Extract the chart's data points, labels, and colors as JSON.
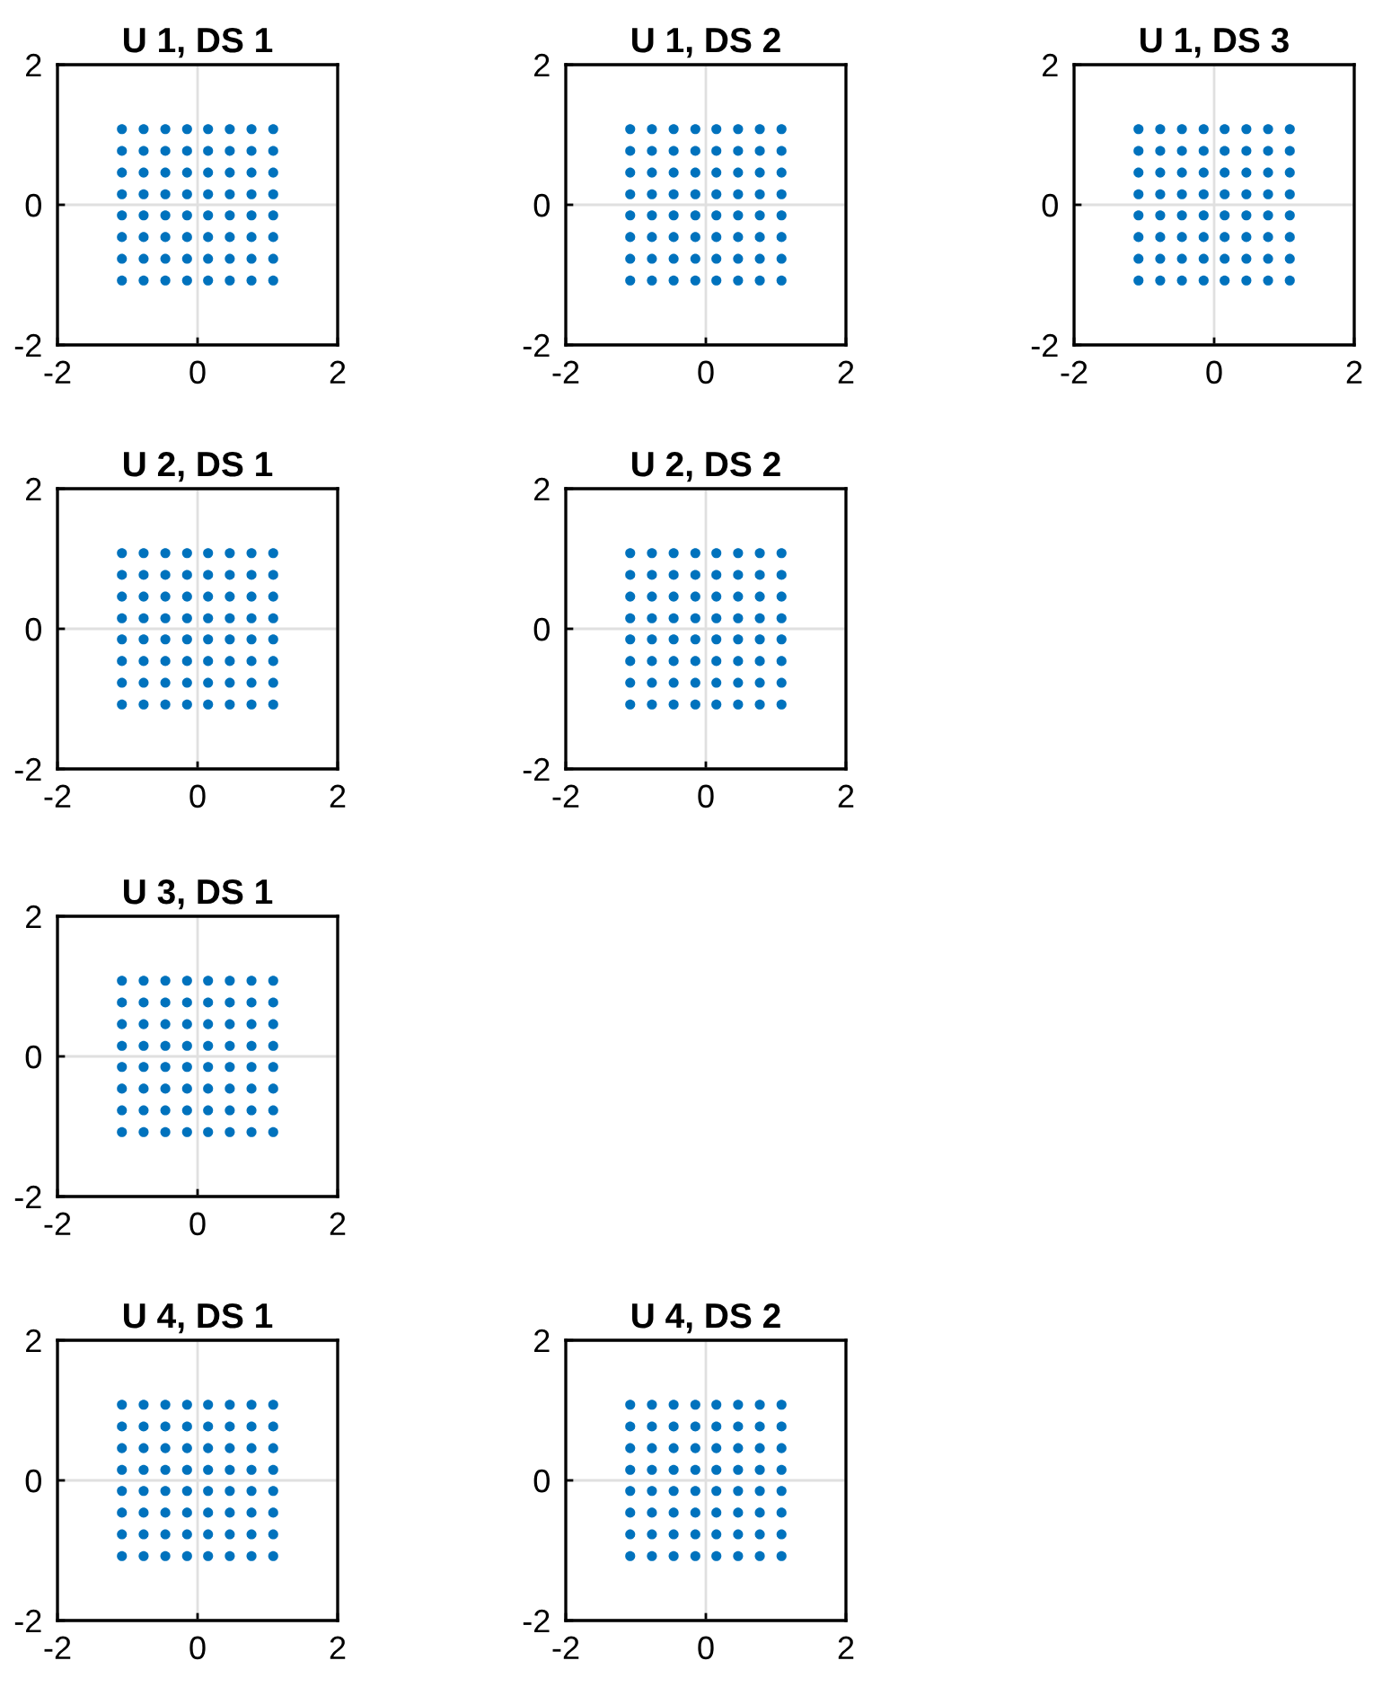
{
  "chart_data": [
    {
      "type": "scatter",
      "title": "U 1, DS 1",
      "xlim": [
        -2,
        2
      ],
      "ylim": [
        -2,
        2
      ],
      "xticks": [
        -2,
        0,
        2
      ],
      "yticks": [
        -2,
        0,
        2
      ],
      "grid": true,
      "marker": "circle",
      "series": [
        {
          "color": "#0072bd",
          "x": [
            -1.08,
            -0.77,
            -0.46,
            -0.15,
            0.15,
            0.46,
            0.77,
            1.08,
            -1.08,
            -0.77,
            -0.46,
            -0.15,
            0.15,
            0.46,
            0.77,
            1.08,
            -1.08,
            -0.77,
            -0.46,
            -0.15,
            0.15,
            0.46,
            0.77,
            1.08,
            -1.08,
            -0.77,
            -0.46,
            -0.15,
            0.15,
            0.46,
            0.77,
            1.08,
            -1.08,
            -0.77,
            -0.46,
            -0.15,
            0.15,
            0.46,
            0.77,
            1.08,
            -1.08,
            -0.77,
            -0.46,
            -0.15,
            0.15,
            0.46,
            0.77,
            1.08,
            -1.08,
            -0.77,
            -0.46,
            -0.15,
            0.15,
            0.46,
            0.77,
            1.08,
            -1.08,
            -0.77,
            -0.46,
            -0.15,
            0.15,
            0.46,
            0.77,
            1.08
          ],
          "values": [
            -1.08,
            -1.08,
            -1.08,
            -1.08,
            -1.08,
            -1.08,
            -1.08,
            -1.08,
            -0.77,
            -0.77,
            -0.77,
            -0.77,
            -0.77,
            -0.77,
            -0.77,
            -0.77,
            -0.46,
            -0.46,
            -0.46,
            -0.46,
            -0.46,
            -0.46,
            -0.46,
            -0.46,
            -0.15,
            -0.15,
            -0.15,
            -0.15,
            -0.15,
            -0.15,
            -0.15,
            -0.15,
            0.15,
            0.15,
            0.15,
            0.15,
            0.15,
            0.15,
            0.15,
            0.15,
            0.46,
            0.46,
            0.46,
            0.46,
            0.46,
            0.46,
            0.46,
            0.46,
            0.77,
            0.77,
            0.77,
            0.77,
            0.77,
            0.77,
            0.77,
            0.77,
            1.08,
            1.08,
            1.08,
            1.08,
            1.08,
            1.08,
            1.08,
            1.08
          ]
        }
      ]
    },
    {
      "type": "scatter",
      "title": "U 1, DS 2",
      "xlim": [
        -2,
        2
      ],
      "ylim": [
        -2,
        2
      ],
      "xticks": [
        -2,
        0,
        2
      ],
      "yticks": [
        -2,
        0,
        2
      ],
      "grid": true,
      "marker": "circle",
      "series": [
        {
          "color": "#0072bd",
          "x": [
            -1.08,
            -0.77,
            -0.46,
            -0.15,
            0.15,
            0.46,
            0.77,
            1.08,
            -1.08,
            -0.77,
            -0.46,
            -0.15,
            0.15,
            0.46,
            0.77,
            1.08,
            -1.08,
            -0.77,
            -0.46,
            -0.15,
            0.15,
            0.46,
            0.77,
            1.08,
            -1.08,
            -0.77,
            -0.46,
            -0.15,
            0.15,
            0.46,
            0.77,
            1.08,
            -1.08,
            -0.77,
            -0.46,
            -0.15,
            0.15,
            0.46,
            0.77,
            1.08,
            -1.08,
            -0.77,
            -0.46,
            -0.15,
            0.15,
            0.46,
            0.77,
            1.08,
            -1.08,
            -0.77,
            -0.46,
            -0.15,
            0.15,
            0.46,
            0.77,
            1.08,
            -1.08,
            -0.77,
            -0.46,
            -0.15,
            0.15,
            0.46,
            0.77,
            1.08
          ],
          "values": [
            -1.08,
            -1.08,
            -1.08,
            -1.08,
            -1.08,
            -1.08,
            -1.08,
            -1.08,
            -0.77,
            -0.77,
            -0.77,
            -0.77,
            -0.77,
            -0.77,
            -0.77,
            -0.77,
            -0.46,
            -0.46,
            -0.46,
            -0.46,
            -0.46,
            -0.46,
            -0.46,
            -0.46,
            -0.15,
            -0.15,
            -0.15,
            -0.15,
            -0.15,
            -0.15,
            -0.15,
            -0.15,
            0.15,
            0.15,
            0.15,
            0.15,
            0.15,
            0.15,
            0.15,
            0.15,
            0.46,
            0.46,
            0.46,
            0.46,
            0.46,
            0.46,
            0.46,
            0.46,
            0.77,
            0.77,
            0.77,
            0.77,
            0.77,
            0.77,
            0.77,
            0.77,
            1.08,
            1.08,
            1.08,
            1.08,
            1.08,
            1.08,
            1.08,
            1.08
          ]
        }
      ]
    },
    {
      "type": "scatter",
      "title": "U 1, DS 3",
      "xlim": [
        -2,
        2
      ],
      "ylim": [
        -2,
        2
      ],
      "xticks": [
        -2,
        0,
        2
      ],
      "yticks": [
        -2,
        0,
        2
      ],
      "grid": true,
      "marker": "circle",
      "series": [
        {
          "color": "#0072bd",
          "x": [
            -1.08,
            -0.77,
            -0.46,
            -0.15,
            0.15,
            0.46,
            0.77,
            1.08,
            -1.08,
            -0.77,
            -0.46,
            -0.15,
            0.15,
            0.46,
            0.77,
            1.08,
            -1.08,
            -0.77,
            -0.46,
            -0.15,
            0.15,
            0.46,
            0.77,
            1.08,
            -1.08,
            -0.77,
            -0.46,
            -0.15,
            0.15,
            0.46,
            0.77,
            1.08,
            -1.08,
            -0.77,
            -0.46,
            -0.15,
            0.15,
            0.46,
            0.77,
            1.08,
            -1.08,
            -0.77,
            -0.46,
            -0.15,
            0.15,
            0.46,
            0.77,
            1.08,
            -1.08,
            -0.77,
            -0.46,
            -0.15,
            0.15,
            0.46,
            0.77,
            1.08,
            -1.08,
            -0.77,
            -0.46,
            -0.15,
            0.15,
            0.46,
            0.77,
            1.08
          ],
          "values": [
            -1.08,
            -1.08,
            -1.08,
            -1.08,
            -1.08,
            -1.08,
            -1.08,
            -1.08,
            -0.77,
            -0.77,
            -0.77,
            -0.77,
            -0.77,
            -0.77,
            -0.77,
            -0.77,
            -0.46,
            -0.46,
            -0.46,
            -0.46,
            -0.46,
            -0.46,
            -0.46,
            -0.46,
            -0.15,
            -0.15,
            -0.15,
            -0.15,
            -0.15,
            -0.15,
            -0.15,
            -0.15,
            0.15,
            0.15,
            0.15,
            0.15,
            0.15,
            0.15,
            0.15,
            0.15,
            0.46,
            0.46,
            0.46,
            0.46,
            0.46,
            0.46,
            0.46,
            0.46,
            0.77,
            0.77,
            0.77,
            0.77,
            0.77,
            0.77,
            0.77,
            0.77,
            1.08,
            1.08,
            1.08,
            1.08,
            1.08,
            1.08,
            1.08,
            1.08
          ]
        }
      ]
    },
    {
      "type": "scatter",
      "title": "U 2, DS 1",
      "xlim": [
        -2,
        2
      ],
      "ylim": [
        -2,
        2
      ],
      "xticks": [
        -2,
        0,
        2
      ],
      "yticks": [
        -2,
        0,
        2
      ],
      "grid": true,
      "marker": "circle",
      "series": [
        {
          "color": "#0072bd",
          "x": [
            -1.08,
            -0.77,
            -0.46,
            -0.15,
            0.15,
            0.46,
            0.77,
            1.08,
            -1.08,
            -0.77,
            -0.46,
            -0.15,
            0.15,
            0.46,
            0.77,
            1.08,
            -1.08,
            -0.77,
            -0.46,
            -0.15,
            0.15,
            0.46,
            0.77,
            1.08,
            -1.08,
            -0.77,
            -0.46,
            -0.15,
            0.15,
            0.46,
            0.77,
            1.08,
            -1.08,
            -0.77,
            -0.46,
            -0.15,
            0.15,
            0.46,
            0.77,
            1.08,
            -1.08,
            -0.77,
            -0.46,
            -0.15,
            0.15,
            0.46,
            0.77,
            1.08,
            -1.08,
            -0.77,
            -0.46,
            -0.15,
            0.15,
            0.46,
            0.77,
            1.08,
            -1.08,
            -0.77,
            -0.46,
            -0.15,
            0.15,
            0.46,
            0.77,
            1.08
          ],
          "values": [
            -1.08,
            -1.08,
            -1.08,
            -1.08,
            -1.08,
            -1.08,
            -1.08,
            -1.08,
            -0.77,
            -0.77,
            -0.77,
            -0.77,
            -0.77,
            -0.77,
            -0.77,
            -0.77,
            -0.46,
            -0.46,
            -0.46,
            -0.46,
            -0.46,
            -0.46,
            -0.46,
            -0.46,
            -0.15,
            -0.15,
            -0.15,
            -0.15,
            -0.15,
            -0.15,
            -0.15,
            -0.15,
            0.15,
            0.15,
            0.15,
            0.15,
            0.15,
            0.15,
            0.15,
            0.15,
            0.46,
            0.46,
            0.46,
            0.46,
            0.46,
            0.46,
            0.46,
            0.46,
            0.77,
            0.77,
            0.77,
            0.77,
            0.77,
            0.77,
            0.77,
            0.77,
            1.08,
            1.08,
            1.08,
            1.08,
            1.08,
            1.08,
            1.08,
            1.08
          ]
        }
      ]
    },
    {
      "type": "scatter",
      "title": "U 2, DS 2",
      "xlim": [
        -2,
        2
      ],
      "ylim": [
        -2,
        2
      ],
      "xticks": [
        -2,
        0,
        2
      ],
      "yticks": [
        -2,
        0,
        2
      ],
      "grid": true,
      "marker": "circle",
      "series": [
        {
          "color": "#0072bd",
          "x": [
            -1.08,
            -0.77,
            -0.46,
            -0.15,
            0.15,
            0.46,
            0.77,
            1.08,
            -1.08,
            -0.77,
            -0.46,
            -0.15,
            0.15,
            0.46,
            0.77,
            1.08,
            -1.08,
            -0.77,
            -0.46,
            -0.15,
            0.15,
            0.46,
            0.77,
            1.08,
            -1.08,
            -0.77,
            -0.46,
            -0.15,
            0.15,
            0.46,
            0.77,
            1.08,
            -1.08,
            -0.77,
            -0.46,
            -0.15,
            0.15,
            0.46,
            0.77,
            1.08,
            -1.08,
            -0.77,
            -0.46,
            -0.15,
            0.15,
            0.46,
            0.77,
            1.08,
            -1.08,
            -0.77,
            -0.46,
            -0.15,
            0.15,
            0.46,
            0.77,
            1.08,
            -1.08,
            -0.77,
            -0.46,
            -0.15,
            0.15,
            0.46,
            0.77,
            1.08
          ],
          "values": [
            -1.08,
            -1.08,
            -1.08,
            -1.08,
            -1.08,
            -1.08,
            -1.08,
            -1.08,
            -0.77,
            -0.77,
            -0.77,
            -0.77,
            -0.77,
            -0.77,
            -0.77,
            -0.77,
            -0.46,
            -0.46,
            -0.46,
            -0.46,
            -0.46,
            -0.46,
            -0.46,
            -0.46,
            -0.15,
            -0.15,
            -0.15,
            -0.15,
            -0.15,
            -0.15,
            -0.15,
            -0.15,
            0.15,
            0.15,
            0.15,
            0.15,
            0.15,
            0.15,
            0.15,
            0.15,
            0.46,
            0.46,
            0.46,
            0.46,
            0.46,
            0.46,
            0.46,
            0.46,
            0.77,
            0.77,
            0.77,
            0.77,
            0.77,
            0.77,
            0.77,
            0.77,
            1.08,
            1.08,
            1.08,
            1.08,
            1.08,
            1.08,
            1.08,
            1.08
          ]
        }
      ]
    },
    {
      "type": "scatter",
      "title": "U 3, DS 1",
      "xlim": [
        -2,
        2
      ],
      "ylim": [
        -2,
        2
      ],
      "xticks": [
        -2,
        0,
        2
      ],
      "yticks": [
        -2,
        0,
        2
      ],
      "grid": true,
      "marker": "circle",
      "series": [
        {
          "color": "#0072bd",
          "x": [
            -1.08,
            -0.77,
            -0.46,
            -0.15,
            0.15,
            0.46,
            0.77,
            1.08,
            -1.08,
            -0.77,
            -0.46,
            -0.15,
            0.15,
            0.46,
            0.77,
            1.08,
            -1.08,
            -0.77,
            -0.46,
            -0.15,
            0.15,
            0.46,
            0.77,
            1.08,
            -1.08,
            -0.77,
            -0.46,
            -0.15,
            0.15,
            0.46,
            0.77,
            1.08,
            -1.08,
            -0.77,
            -0.46,
            -0.15,
            0.15,
            0.46,
            0.77,
            1.08,
            -1.08,
            -0.77,
            -0.46,
            -0.15,
            0.15,
            0.46,
            0.77,
            1.08,
            -1.08,
            -0.77,
            -0.46,
            -0.15,
            0.15,
            0.46,
            0.77,
            1.08,
            -1.08,
            -0.77,
            -0.46,
            -0.15,
            0.15,
            0.46,
            0.77,
            1.08
          ],
          "values": [
            -1.08,
            -1.08,
            -1.08,
            -1.08,
            -1.08,
            -1.08,
            -1.08,
            -1.08,
            -0.77,
            -0.77,
            -0.77,
            -0.77,
            -0.77,
            -0.77,
            -0.77,
            -0.77,
            -0.46,
            -0.46,
            -0.46,
            -0.46,
            -0.46,
            -0.46,
            -0.46,
            -0.46,
            -0.15,
            -0.15,
            -0.15,
            -0.15,
            -0.15,
            -0.15,
            -0.15,
            -0.15,
            0.15,
            0.15,
            0.15,
            0.15,
            0.15,
            0.15,
            0.15,
            0.15,
            0.46,
            0.46,
            0.46,
            0.46,
            0.46,
            0.46,
            0.46,
            0.46,
            0.77,
            0.77,
            0.77,
            0.77,
            0.77,
            0.77,
            0.77,
            0.77,
            1.08,
            1.08,
            1.08,
            1.08,
            1.08,
            1.08,
            1.08,
            1.08
          ]
        }
      ]
    },
    {
      "type": "scatter",
      "title": "U 4, DS 1",
      "xlim": [
        -2,
        2
      ],
      "ylim": [
        -2,
        2
      ],
      "xticks": [
        -2,
        0,
        2
      ],
      "yticks": [
        -2,
        0,
        2
      ],
      "grid": true,
      "marker": "circle",
      "series": [
        {
          "color": "#0072bd",
          "x": [
            -1.08,
            -0.77,
            -0.46,
            -0.15,
            0.15,
            0.46,
            0.77,
            1.08,
            -1.08,
            -0.77,
            -0.46,
            -0.15,
            0.15,
            0.46,
            0.77,
            1.08,
            -1.08,
            -0.77,
            -0.46,
            -0.15,
            0.15,
            0.46,
            0.77,
            1.08,
            -1.08,
            -0.77,
            -0.46,
            -0.15,
            0.15,
            0.46,
            0.77,
            1.08,
            -1.08,
            -0.77,
            -0.46,
            -0.15,
            0.15,
            0.46,
            0.77,
            1.08,
            -1.08,
            -0.77,
            -0.46,
            -0.15,
            0.15,
            0.46,
            0.77,
            1.08,
            -1.08,
            -0.77,
            -0.46,
            -0.15,
            0.15,
            0.46,
            0.77,
            1.08,
            -1.08,
            -0.77,
            -0.46,
            -0.15,
            0.15,
            0.46,
            0.77,
            1.08
          ],
          "values": [
            -1.08,
            -1.08,
            -1.08,
            -1.08,
            -1.08,
            -1.08,
            -1.08,
            -1.08,
            -0.77,
            -0.77,
            -0.77,
            -0.77,
            -0.77,
            -0.77,
            -0.77,
            -0.77,
            -0.46,
            -0.46,
            -0.46,
            -0.46,
            -0.46,
            -0.46,
            -0.46,
            -0.46,
            -0.15,
            -0.15,
            -0.15,
            -0.15,
            -0.15,
            -0.15,
            -0.15,
            -0.15,
            0.15,
            0.15,
            0.15,
            0.15,
            0.15,
            0.15,
            0.15,
            0.15,
            0.46,
            0.46,
            0.46,
            0.46,
            0.46,
            0.46,
            0.46,
            0.46,
            0.77,
            0.77,
            0.77,
            0.77,
            0.77,
            0.77,
            0.77,
            0.77,
            1.08,
            1.08,
            1.08,
            1.08,
            1.08,
            1.08,
            1.08,
            1.08
          ]
        }
      ]
    },
    {
      "type": "scatter",
      "title": "U 4, DS 2",
      "xlim": [
        -2,
        2
      ],
      "ylim": [
        -2,
        2
      ],
      "xticks": [
        -2,
        0,
        2
      ],
      "yticks": [
        -2,
        0,
        2
      ],
      "grid": true,
      "marker": "circle",
      "series": [
        {
          "color": "#0072bd",
          "x": [
            -1.08,
            -0.77,
            -0.46,
            -0.15,
            0.15,
            0.46,
            0.77,
            1.08,
            -1.08,
            -0.77,
            -0.46,
            -0.15,
            0.15,
            0.46,
            0.77,
            1.08,
            -1.08,
            -0.77,
            -0.46,
            -0.15,
            0.15,
            0.46,
            0.77,
            1.08,
            -1.08,
            -0.77,
            -0.46,
            -0.15,
            0.15,
            0.46,
            0.77,
            1.08,
            -1.08,
            -0.77,
            -0.46,
            -0.15,
            0.15,
            0.46,
            0.77,
            1.08,
            -1.08,
            -0.77,
            -0.46,
            -0.15,
            0.15,
            0.46,
            0.77,
            1.08,
            -1.08,
            -0.77,
            -0.46,
            -0.15,
            0.15,
            0.46,
            0.77,
            1.08,
            -1.08,
            -0.77,
            -0.46,
            -0.15,
            0.15,
            0.46,
            0.77,
            1.08
          ],
          "values": [
            -1.08,
            -1.08,
            -1.08,
            -1.08,
            -1.08,
            -1.08,
            -1.08,
            -1.08,
            -0.77,
            -0.77,
            -0.77,
            -0.77,
            -0.77,
            -0.77,
            -0.77,
            -0.77,
            -0.46,
            -0.46,
            -0.46,
            -0.46,
            -0.46,
            -0.46,
            -0.46,
            -0.46,
            -0.15,
            -0.15,
            -0.15,
            -0.15,
            -0.15,
            -0.15,
            -0.15,
            -0.15,
            0.15,
            0.15,
            0.15,
            0.15,
            0.15,
            0.15,
            0.15,
            0.15,
            0.46,
            0.46,
            0.46,
            0.46,
            0.46,
            0.46,
            0.46,
            0.46,
            0.77,
            0.77,
            0.77,
            0.77,
            0.77,
            0.77,
            0.77,
            0.77,
            1.08,
            1.08,
            1.08,
            1.08,
            1.08,
            1.08,
            1.08,
            1.08
          ]
        }
      ]
    }
  ]
}
